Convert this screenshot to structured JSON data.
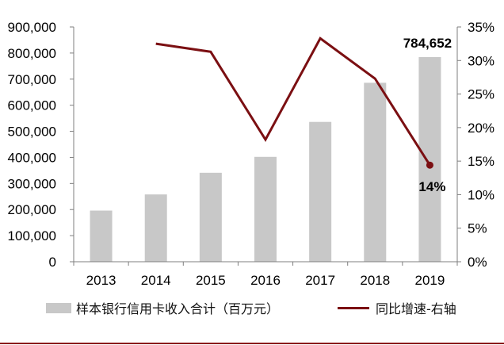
{
  "chart_data": {
    "type": "bar",
    "categories": [
      "2013",
      "2014",
      "2015",
      "2016",
      "2017",
      "2018",
      "2019"
    ],
    "series": [
      {
        "name": "样本银行信用卡收入合计（百万元）",
        "type": "bar",
        "axis": "left",
        "values": [
          196000,
          258000,
          341000,
          402000,
          536000,
          686000,
          784652
        ],
        "color": "#c8c8c8"
      },
      {
        "name": "同比增速-右轴",
        "type": "line",
        "axis": "right",
        "values": [
          null,
          32.5,
          31.3,
          18.2,
          33.3,
          27.3,
          14.4
        ],
        "color": "#7b0f12"
      }
    ],
    "left_axis": {
      "min": 0,
      "max": 900000,
      "step": 100000,
      "tick_labels": [
        "0",
        "100,000",
        "200,000",
        "300,000",
        "400,000",
        "500,000",
        "600,000",
        "700,000",
        "800,000",
        "900,000"
      ]
    },
    "right_axis": {
      "min": 0,
      "max": 35,
      "step": 5,
      "tick_labels": [
        "0%",
        "5%",
        "10%",
        "15%",
        "20%",
        "25%",
        "30%",
        "35%"
      ]
    },
    "annotations": [
      {
        "text": "784,652",
        "target": "bar",
        "index": 6
      },
      {
        "text": "14%",
        "target": "line",
        "index": 6
      }
    ],
    "legend": {
      "position": "bottom",
      "items": [
        "样本银行信用卡收入合计（百万元）",
        "同比增速-右轴"
      ]
    },
    "grid": false,
    "title": ""
  },
  "theme": {
    "axis_color": "#7f7f7f",
    "bottom_rule_color": "#8b1a1a"
  }
}
